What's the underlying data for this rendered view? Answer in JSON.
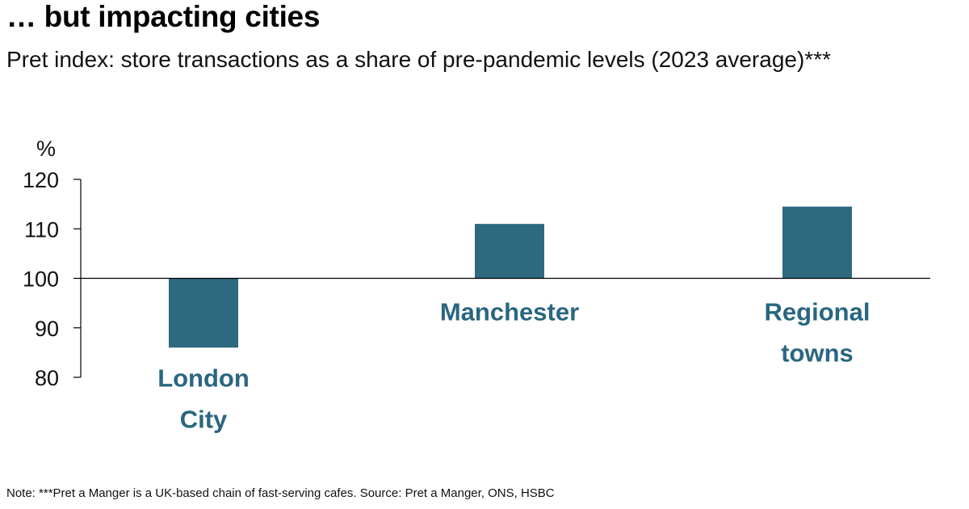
{
  "title": "… but impacting cities",
  "subtitle": "Pret index: store transactions as a share of pre-pandemic levels (2023 average)***",
  "note": "Note: ***Pret a Manger is a UK-based chain of fast-serving cafes. Source: Pret a Manger, ONS, HSBC",
  "colors": {
    "bar": "#2e6980",
    "bar_label": "#2a6680",
    "axis": "#000000"
  },
  "chart_data": {
    "type": "bar",
    "ylabel": "%",
    "ylim": [
      80,
      120
    ],
    "yticks": [
      80,
      90,
      100,
      110,
      120
    ],
    "baseline": 100,
    "grid": false,
    "categories": [
      [
        "London",
        "City"
      ],
      [
        "Manchester"
      ],
      [
        "Regional",
        "towns"
      ]
    ],
    "values": [
      86,
      111,
      114.5
    ]
  }
}
